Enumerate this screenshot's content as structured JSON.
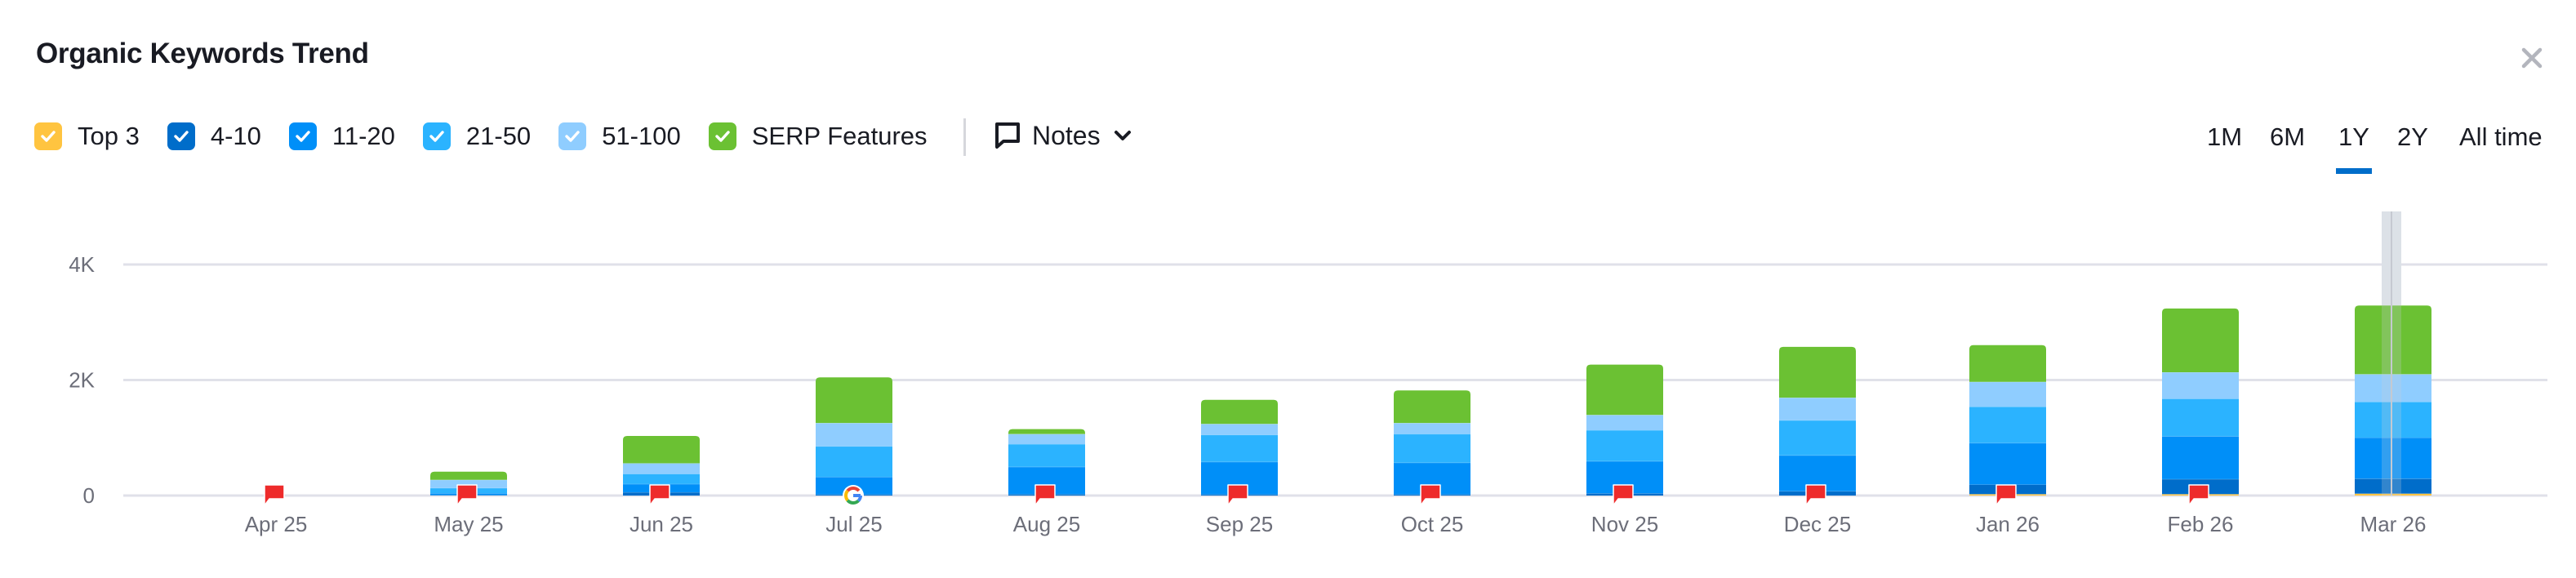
{
  "header": {
    "title": "Organic Keywords Trend",
    "close_icon": "close-icon"
  },
  "legend": {
    "items": [
      {
        "label": "Top 3",
        "color": "#ffc440",
        "checked": true,
        "icon": "check-icon"
      },
      {
        "label": "4-10",
        "color": "#006dca",
        "checked": true,
        "icon": "check-icon"
      },
      {
        "label": "11-20",
        "color": "#008ff8",
        "checked": true,
        "icon": "check-icon"
      },
      {
        "label": "21-50",
        "color": "#2bb3ff",
        "checked": true,
        "icon": "check-icon"
      },
      {
        "label": "51-100",
        "color": "#8fcdff",
        "checked": true,
        "icon": "check-icon"
      },
      {
        "label": "SERP Features",
        "color": "#6bc133",
        "checked": true,
        "icon": "check-icon"
      }
    ],
    "notes": {
      "label": "Notes",
      "icon": "comment-icon",
      "chevron": "chevron-down-icon"
    }
  },
  "timeframes": {
    "options": [
      "1M",
      "6M",
      "1Y",
      "2Y",
      "All time"
    ],
    "selected": "1Y",
    "accent_color": "#006dca"
  },
  "chart_data": {
    "type": "bar",
    "stacked": true,
    "title": "Organic Keywords Trend",
    "xlabel": "",
    "ylabel": "",
    "ylim": [
      0,
      4000
    ],
    "yticks": [
      0,
      2000,
      4000
    ],
    "ytick_labels": [
      "0",
      "2K",
      "4K"
    ],
    "grid": true,
    "legend_position": "top",
    "categories": [
      "Apr 25",
      "May 25",
      "Jun 25",
      "Jul 25",
      "Aug 25",
      "Sep 25",
      "Oct 25",
      "Nov 25",
      "Dec 25",
      "Jan 26",
      "Feb 26",
      "Mar 26"
    ],
    "series": [
      {
        "name": "Top 3",
        "color": "#ffc440",
        "values": [
          0,
          0,
          0,
          0,
          0,
          0,
          0,
          0,
          0,
          24,
          24,
          33
        ]
      },
      {
        "name": "4-10",
        "color": "#006dca",
        "values": [
          0,
          10,
          57,
          20,
          24,
          20,
          20,
          38,
          76,
          166,
          260,
          260
        ]
      },
      {
        "name": "11-20",
        "color": "#008ff8",
        "values": [
          0,
          30,
          142,
          303,
          473,
          563,
          549,
          558,
          620,
          720,
          743,
          710
        ]
      },
      {
        "name": "21-50",
        "color": "#2bb3ff",
        "values": [
          0,
          90,
          175,
          530,
          393,
          468,
          497,
          535,
          606,
          629,
          649,
          620
        ]
      },
      {
        "name": "51-100",
        "color": "#8fcdff",
        "values": [
          0,
          142,
          185,
          403,
          175,
          190,
          190,
          265,
          393,
          430,
          459,
          478
        ]
      },
      {
        "name": "SERP Features",
        "color": "#6bc133",
        "values": [
          0,
          142,
          473,
          790,
          85,
          416,
          563,
          870,
          880,
          635,
          1103,
          1188
        ]
      }
    ],
    "totals": [
      0,
      414,
      1032,
      2046,
      1150,
      1657,
      1819,
      2266,
      2575,
      2604,
      3238,
      3289
    ],
    "annotations": [
      {
        "category": "Apr 25",
        "type": "note-flag"
      },
      {
        "category": "May 25",
        "type": "note-flag"
      },
      {
        "category": "Jun 25",
        "type": "note-flag"
      },
      {
        "category": "Jul 25",
        "type": "google-update"
      },
      {
        "category": "Aug 25",
        "type": "note-flag"
      },
      {
        "category": "Sep 25",
        "type": "note-flag"
      },
      {
        "category": "Oct 25",
        "type": "note-flag"
      },
      {
        "category": "Nov 25",
        "type": "note-flag"
      },
      {
        "category": "Dec 25",
        "type": "note-flag"
      },
      {
        "category": "Jan 26",
        "type": "note-flag"
      },
      {
        "category": "Feb 26",
        "type": "note-flag"
      }
    ],
    "hover_category": "Mar 26"
  }
}
